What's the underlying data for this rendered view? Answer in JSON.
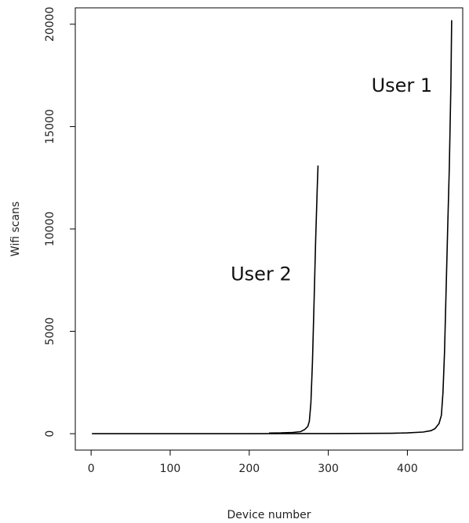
{
  "chart_data": {
    "type": "line",
    "title": "",
    "xlabel": "Device number",
    "ylabel": "Wifi scans",
    "xlim": [
      -20,
      470
    ],
    "ylim": [
      -800,
      20800
    ],
    "x_ticks": [
      0,
      100,
      200,
      300,
      400
    ],
    "y_ticks": [
      0,
      5000,
      10000,
      15000,
      20000
    ],
    "grid": false,
    "series": [
      {
        "name": "User 1",
        "color": "#000000",
        "x": [
          1,
          100,
          200,
          300,
          380,
          400,
          420,
          430,
          435,
          440,
          443,
          445,
          447,
          449,
          451,
          453,
          455,
          456
        ],
        "y": [
          0,
          0,
          0,
          10,
          20,
          40,
          80,
          150,
          250,
          500,
          900,
          2000,
          4000,
          7000,
          10000,
          13000,
          17000,
          20200
        ]
      },
      {
        "name": "User 2",
        "color": "#000000",
        "x": [
          225,
          240,
          255,
          265,
          270,
          274,
          276,
          278,
          280,
          282,
          284,
          286,
          287
        ],
        "y": [
          30,
          40,
          60,
          100,
          200,
          350,
          600,
          1500,
          3500,
          6500,
          9500,
          12000,
          13100
        ]
      }
    ],
    "annotations": [
      {
        "text": "User 1",
        "x": 393,
        "y": 16700
      },
      {
        "text": "User 2",
        "x": 215,
        "y": 7500
      }
    ]
  }
}
